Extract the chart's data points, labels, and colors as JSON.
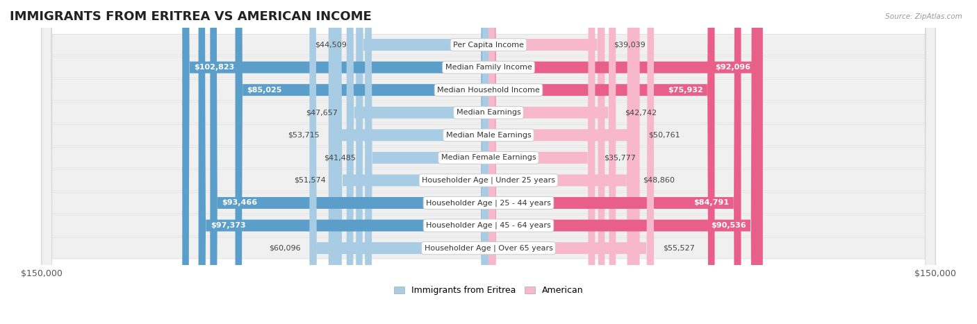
{
  "title": "IMMIGRANTS FROM ERITREA VS AMERICAN INCOME",
  "source": "Source: ZipAtlas.com",
  "categories": [
    "Per Capita Income",
    "Median Family Income",
    "Median Household Income",
    "Median Earnings",
    "Median Male Earnings",
    "Median Female Earnings",
    "Householder Age | Under 25 years",
    "Householder Age | 25 - 44 years",
    "Householder Age | 45 - 64 years",
    "Householder Age | Over 65 years"
  ],
  "eritrea_values": [
    44509,
    102823,
    85025,
    47657,
    53715,
    41485,
    51574,
    93466,
    97373,
    60096
  ],
  "american_values": [
    39039,
    92096,
    75932,
    42742,
    50761,
    35777,
    48860,
    84791,
    90536,
    55527
  ],
  "eritrea_labels": [
    "$44,509",
    "$102,823",
    "$85,025",
    "$47,657",
    "$53,715",
    "$41,485",
    "$51,574",
    "$93,466",
    "$97,373",
    "$60,096"
  ],
  "american_labels": [
    "$39,039",
    "$92,096",
    "$75,932",
    "$42,742",
    "$50,761",
    "$35,777",
    "$48,860",
    "$84,791",
    "$90,536",
    "$55,527"
  ],
  "eritrea_color_light": "#a8cce4",
  "eritrea_color_dark": "#5b9ec9",
  "american_color_light": "#f7b8cc",
  "american_color_dark": "#e8608a",
  "max_value": 150000,
  "xlabel_left": "$150,000",
  "xlabel_right": "$150,000",
  "legend_eritrea": "Immigrants from Eritrea",
  "legend_american": "American",
  "title_fontsize": 13,
  "label_fontsize": 8,
  "category_fontsize": 8,
  "axis_fontsize": 9,
  "eritrea_threshold": 70000,
  "american_threshold": 70000
}
